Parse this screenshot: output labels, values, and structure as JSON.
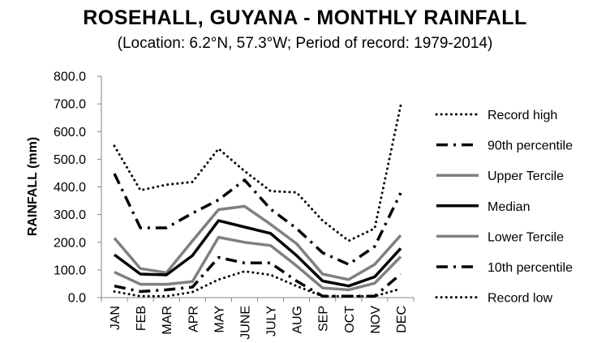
{
  "chart_data": {
    "type": "line",
    "title": "ROSEHALL, GUYANA - MONTHLY RAINFALL",
    "subtitle": "(Location: 6.2°N, 57.3°W; Period of record: 1979-2014)",
    "ylabel": "RAINFALL (mm)",
    "xlabel": "",
    "ylim": [
      0,
      800
    ],
    "ytick_labels": [
      "0.0",
      "100.0",
      "200.0",
      "300.0",
      "400.0",
      "500.0",
      "600.0",
      "700.0",
      "800.0"
    ],
    "grid": false,
    "legend_position": "right",
    "categories": [
      "JAN",
      "FEB",
      "MAR",
      "APR",
      "MAY",
      "JUNE",
      "JULY",
      "AUG",
      "SEP",
      "OCT",
      "NOV",
      "DEC"
    ],
    "series": [
      {
        "name": "Record high",
        "style": "dotted",
        "color": "#000000",
        "values": [
          548,
          388,
          408,
          418,
          538,
          457,
          385,
          380,
          278,
          205,
          250,
          695
        ]
      },
      {
        "name": "90th percentile",
        "style": "dashdot",
        "color": "#000000",
        "values": [
          448,
          252,
          252,
          305,
          353,
          425,
          320,
          250,
          162,
          120,
          185,
          378
        ]
      },
      {
        "name": "Upper Tercile",
        "style": "solid",
        "color": "#808080",
        "values": [
          215,
          105,
          90,
          205,
          318,
          330,
          265,
          195,
          85,
          65,
          120,
          225
        ]
      },
      {
        "name": "Median",
        "style": "solid",
        "color": "#000000",
        "values": [
          155,
          85,
          82,
          152,
          278,
          255,
          232,
          152,
          60,
          42,
          75,
          178
        ]
      },
      {
        "name": "Lower Tercile",
        "style": "solid",
        "color": "#808080",
        "values": [
          92,
          48,
          48,
          58,
          218,
          200,
          188,
          115,
          35,
          28,
          52,
          148
        ]
      },
      {
        "name": "10th percentile",
        "style": "dashdot",
        "color": "#000000",
        "values": [
          42,
          22,
          28,
          38,
          145,
          125,
          125,
          60,
          5,
          5,
          5,
          85
        ]
      },
      {
        "name": "Record low",
        "style": "dotted",
        "color": "#000000",
        "values": [
          22,
          5,
          5,
          20,
          65,
          95,
          82,
          42,
          5,
          5,
          5,
          32
        ]
      }
    ]
  }
}
